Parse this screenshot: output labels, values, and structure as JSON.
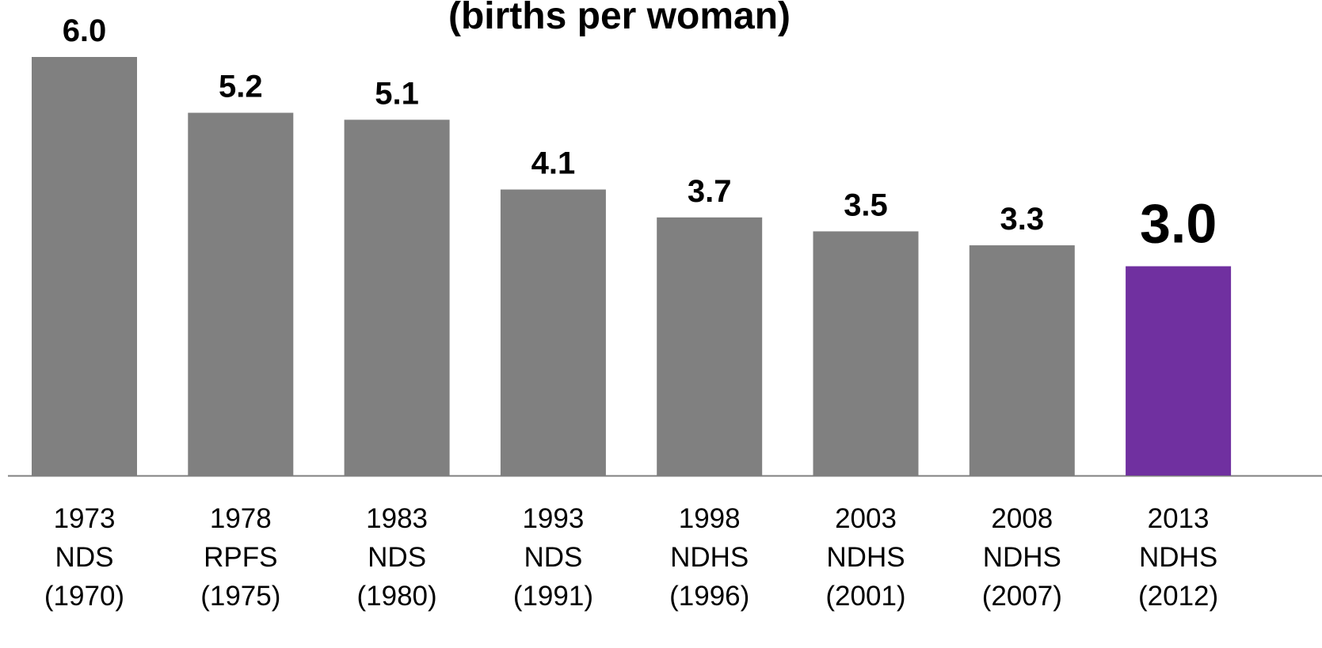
{
  "chart_data": {
    "type": "bar",
    "title": "(births per woman)",
    "categories": [
      "1973\nNDS\n(1970)",
      "1978\nRPFS\n(1975)",
      "1983\nNDS\n(1980)",
      "1993\nNDS\n(1991)",
      "1998\nNDHS\n(1996)",
      "2003\nNDHS\n(2001)",
      "2008\nNDHS\n(2007)",
      "2013\nNDHS\n(2012)"
    ],
    "values": [
      6.0,
      5.2,
      5.1,
      4.1,
      3.7,
      3.5,
      3.3,
      3.0
    ],
    "value_labels": [
      "6.0",
      "5.2",
      "5.1",
      "4.1",
      "3.7",
      "3.5",
      "3.3",
      "3.0"
    ],
    "colors": [
      "#808080",
      "#808080",
      "#808080",
      "#808080",
      "#808080",
      "#808080",
      "#808080",
      "#7030a0"
    ],
    "ylim": [
      0,
      6
    ],
    "grid": false
  }
}
